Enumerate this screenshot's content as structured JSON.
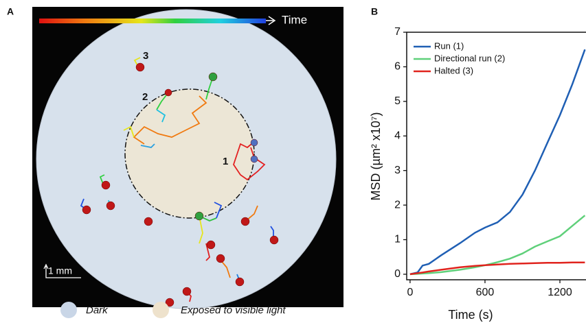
{
  "panel_a": {
    "label": "A",
    "time_label": "Time",
    "track_labels": [
      "3",
      "2",
      "1"
    ],
    "scale_label": "1 mm",
    "legend": [
      "Dark",
      "Exposed to visible light"
    ]
  },
  "chart_data": {
    "type": "line",
    "panel_label": "B",
    "xlabel": "Time (s)",
    "ylabel": "MSD (µm² x10⁷)",
    "x": [
      0,
      60,
      100,
      150,
      250,
      400,
      520,
      600,
      700,
      800,
      900,
      1000,
      1100,
      1200,
      1300,
      1400
    ],
    "series": [
      {
        "name": "Run (1)",
        "color": "#1f5fb4",
        "values": [
          0,
          0.05,
          0.25,
          0.3,
          0.55,
          0.9,
          1.2,
          1.35,
          1.5,
          1.8,
          2.3,
          3.0,
          3.8,
          4.6,
          5.5,
          6.5
        ]
      },
      {
        "name": "Directional run (2)",
        "color": "#5fd07a",
        "values": [
          0,
          0.01,
          0.02,
          0.03,
          0.06,
          0.13,
          0.2,
          0.26,
          0.35,
          0.45,
          0.6,
          0.8,
          0.95,
          1.1,
          1.4,
          1.7
        ]
      },
      {
        "name": "Halted (3)",
        "color": "#e0231d",
        "values": [
          0,
          0.03,
          0.05,
          0.08,
          0.13,
          0.2,
          0.24,
          0.26,
          0.28,
          0.3,
          0.31,
          0.32,
          0.33,
          0.33,
          0.34,
          0.34
        ]
      }
    ],
    "xlim": [
      -27,
      1409
    ],
    "ylim": [
      -0.16,
      7
    ],
    "xticks": [
      0,
      600,
      1200
    ],
    "yticks": [
      0,
      1,
      2,
      3,
      4,
      5,
      6,
      7
    ],
    "grid": false,
    "legend_position": "upper left"
  }
}
